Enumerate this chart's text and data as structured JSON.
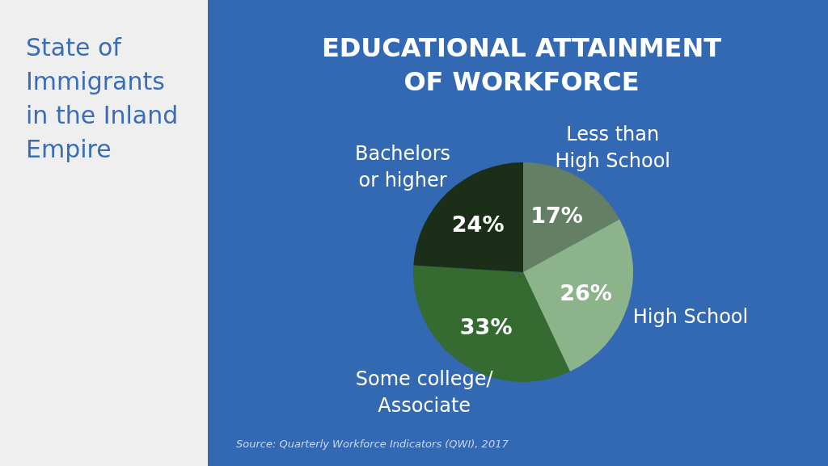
{
  "chart_data": {
    "type": "pie",
    "title": "EDUCATIONAL ATTAINMENT OF WORKFORCE",
    "subtitle": "State of Immigrants in the Inland Empire",
    "categories": [
      "Less than\nHigh School",
      "High School",
      "Some college/\nAssociate",
      "Bachelors\nor higher"
    ],
    "values": [
      17,
      26,
      33,
      24
    ],
    "value_labels": [
      "17%",
      "26%",
      "33%",
      "24%"
    ],
    "colors": [
      "#647f63",
      "#8db38a",
      "#356a30",
      "#1b2f18"
    ],
    "annotations": [
      "Source: Quarterly Workforce Indicators (QWI), 2017"
    ]
  }
}
